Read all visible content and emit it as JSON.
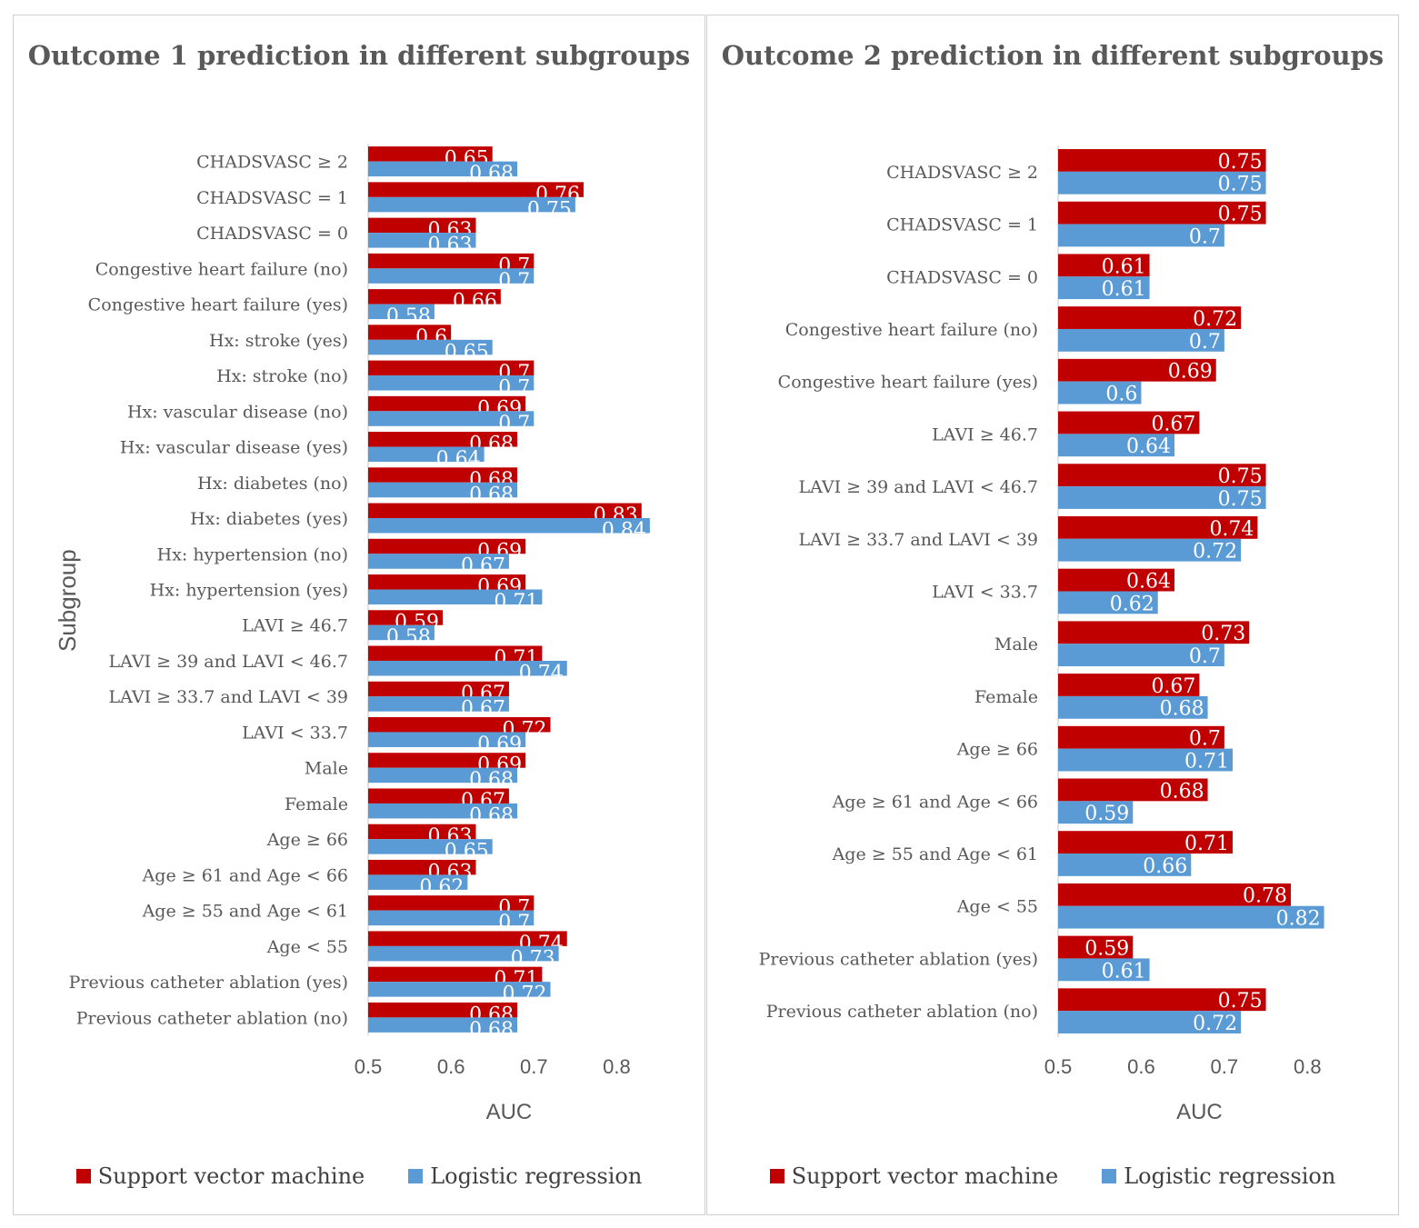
{
  "colors": {
    "svm": "#C00000",
    "lr": "#5B9BD5",
    "axis": "#d9d9d9",
    "text": "#595959"
  },
  "chart_data": [
    {
      "type": "bar",
      "orientation": "horizontal",
      "title": "Outcome 1 prediction in different subgroups",
      "xlabel": "AUC",
      "ylabel": "Subgroup",
      "xlim": [
        0.5,
        0.85
      ],
      "xticks": [
        "0.5",
        "0.6",
        "0.7",
        "0.8"
      ],
      "legend": {
        "position": "bottom",
        "entries": [
          "Support vector machine",
          "Logistic regression"
        ]
      },
      "categories": [
        "CHADSVASC ≥ 2",
        "CHADSVASC = 1",
        "CHADSVASC = 0",
        "Congestive heart failure (no)",
        "Congestive heart failure (yes)",
        "Hx: stroke (yes)",
        "Hx: stroke (no)",
        "Hx: vascular disease (no)",
        "Hx: vascular disease (yes)",
        "Hx: diabetes (no)",
        "Hx: diabetes (yes)",
        "Hx: hypertension (no)",
        "Hx: hypertension (yes)",
        "LAVI ≥ 46.7",
        "LAVI ≥ 39 and LAVI < 46.7",
        "LAVI ≥ 33.7 and LAVI < 39",
        "LAVI < 33.7",
        "Male",
        "Female",
        "Age ≥ 66",
        "Age ≥ 61 and Age < 66",
        "Age ≥ 55 and Age < 61",
        "Age < 55",
        "Previous catheter ablation (yes)",
        "Previous catheter ablation (no)"
      ],
      "series": [
        {
          "name": "Support vector machine",
          "values": [
            0.65,
            0.76,
            0.63,
            0.7,
            0.66,
            0.6,
            0.7,
            0.69,
            0.68,
            0.68,
            0.83,
            0.69,
            0.69,
            0.59,
            0.71,
            0.67,
            0.72,
            0.69,
            0.67,
            0.63,
            0.63,
            0.7,
            0.74,
            0.71,
            0.68
          ]
        },
        {
          "name": "Logistic regression",
          "values": [
            0.68,
            0.75,
            0.63,
            0.7,
            0.58,
            0.65,
            0.7,
            0.7,
            0.64,
            0.68,
            0.84,
            0.67,
            0.71,
            0.58,
            0.74,
            0.67,
            0.69,
            0.68,
            0.68,
            0.65,
            0.62,
            0.7,
            0.73,
            0.72,
            0.68
          ]
        }
      ]
    },
    {
      "type": "bar",
      "orientation": "horizontal",
      "title": "Outcome 2 prediction in different subgroups",
      "xlabel": "AUC",
      "ylabel": "",
      "xlim": [
        0.5,
        0.85
      ],
      "xticks": [
        "0.5",
        "0.6",
        "0.7",
        "0.8"
      ],
      "legend": {
        "position": "bottom",
        "entries": [
          "Support vector machine",
          "Logistic regression"
        ]
      },
      "categories": [
        "CHADSVASC ≥ 2",
        "CHADSVASC = 1",
        "CHADSVASC = 0",
        "Congestive heart failure (no)",
        "Congestive heart failure (yes)",
        "LAVI ≥ 46.7",
        "LAVI ≥ 39 and LAVI < 46.7",
        "LAVI ≥ 33.7 and LAVI < 39",
        "LAVI < 33.7",
        "Male",
        "Female",
        "Age ≥ 66",
        "Age ≥ 61 and Age < 66",
        "Age ≥ 55 and Age < 61",
        "Age < 55",
        "Previous catheter ablation (yes)",
        "Previous catheter ablation (no)"
      ],
      "series": [
        {
          "name": "Support vector machine",
          "values": [
            0.75,
            0.75,
            0.61,
            0.72,
            0.69,
            0.67,
            0.75,
            0.74,
            0.64,
            0.73,
            0.67,
            0.7,
            0.68,
            0.71,
            0.78,
            0.59,
            0.75
          ]
        },
        {
          "name": "Logistic regression",
          "values": [
            0.75,
            0.7,
            0.61,
            0.7,
            0.6,
            0.64,
            0.75,
            0.72,
            0.62,
            0.7,
            0.68,
            0.71,
            0.59,
            0.66,
            0.82,
            0.61,
            0.72
          ]
        }
      ]
    }
  ]
}
